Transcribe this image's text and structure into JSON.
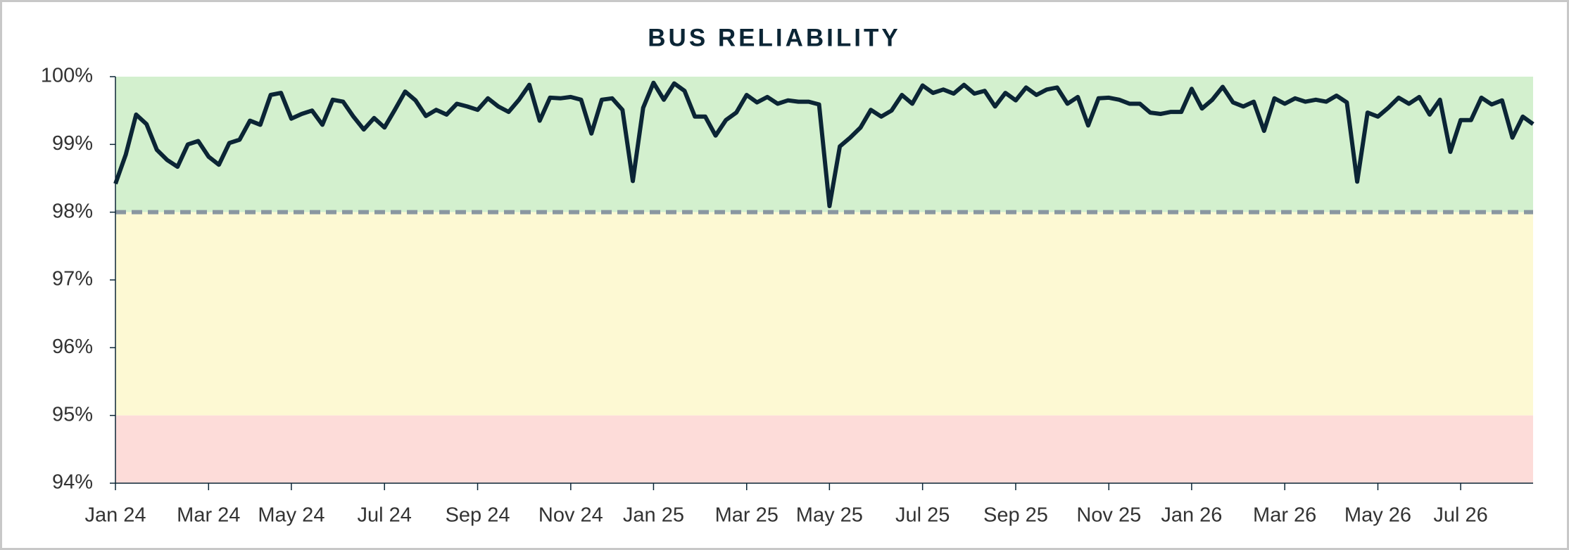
{
  "chart_data": {
    "type": "line",
    "title": "BUS RELIABILITY",
    "categories": [
      "Jan 24",
      null,
      null,
      null,
      null,
      null,
      null,
      null,
      null,
      "Mar 24",
      null,
      null,
      null,
      null,
      null,
      null,
      null,
      "May 24",
      null,
      null,
      null,
      null,
      null,
      null,
      null,
      null,
      "Jul 24",
      null,
      null,
      null,
      null,
      null,
      null,
      null,
      null,
      "Sep 24",
      null,
      null,
      null,
      null,
      null,
      null,
      null,
      null,
      "Nov 24",
      null,
      null,
      null,
      null,
      null,
      null,
      null,
      "Jan 25",
      null,
      null,
      null,
      null,
      null,
      null,
      null,
      null,
      "Mar 25",
      null,
      null,
      null,
      null,
      null,
      null,
      null,
      "May 25",
      null,
      null,
      null,
      null,
      null,
      null,
      null,
      null,
      "Jul 25",
      null,
      null,
      null,
      null,
      null,
      null,
      null,
      null,
      "Sep 25",
      null,
      null,
      null,
      null,
      null,
      null,
      null,
      null,
      "Nov 25",
      null,
      null,
      null,
      null,
      null,
      null,
      null,
      "Jan 26",
      null,
      null,
      null,
      null,
      null,
      null,
      null,
      null,
      "Mar 26",
      null,
      null,
      null,
      null,
      null,
      null,
      null,
      null,
      "May 26",
      null,
      null,
      null,
      null,
      null,
      null,
      null,
      "Jul 26",
      null,
      null,
      null,
      null,
      null,
      null,
      null
    ],
    "values": [
      98.42,
      98.85,
      99.44,
      99.3,
      98.92,
      98.77,
      98.67,
      99.0,
      99.05,
      98.82,
      98.7,
      99.02,
      99.07,
      99.35,
      99.29,
      99.73,
      99.76,
      99.38,
      99.45,
      99.5,
      99.29,
      99.66,
      99.63,
      99.41,
      99.22,
      99.39,
      99.25,
      99.51,
      99.78,
      99.65,
      99.42,
      99.51,
      99.44,
      99.6,
      99.56,
      99.51,
      99.68,
      99.56,
      99.48,
      99.66,
      99.88,
      99.35,
      99.69,
      99.68,
      99.7,
      99.66,
      99.16,
      99.66,
      99.68,
      99.51,
      98.46,
      99.54,
      99.91,
      99.66,
      99.9,
      99.79,
      99.41,
      99.41,
      99.13,
      99.36,
      99.47,
      99.73,
      99.62,
      99.7,
      99.6,
      99.65,
      99.63,
      99.63,
      99.59,
      98.09,
      98.97,
      99.1,
      99.25,
      99.51,
      99.41,
      99.5,
      99.73,
      99.6,
      99.87,
      99.76,
      99.81,
      99.75,
      99.88,
      99.75,
      99.79,
      99.56,
      99.76,
      99.65,
      99.84,
      99.73,
      99.81,
      99.84,
      99.6,
      99.7,
      99.28,
      99.68,
      99.69,
      99.66,
      99.6,
      99.6,
      99.47,
      99.45,
      99.48,
      99.48,
      99.82,
      99.53,
      99.66,
      99.85,
      99.62,
      99.56,
      99.63,
      99.2,
      99.68,
      99.6,
      99.68,
      99.63,
      99.66,
      99.63,
      99.72,
      99.62,
      98.45,
      99.47,
      99.41,
      99.54,
      99.69,
      99.6,
      99.7,
      99.44,
      99.66,
      98.89,
      99.36,
      99.36,
      99.69,
      99.59,
      99.65,
      99.1,
      99.41,
      99.3
    ],
    "color": "#0b2535",
    "ylim": [
      94,
      100
    ],
    "yticks": [
      {
        "value": 94,
        "label": "94%"
      },
      {
        "value": 95,
        "label": "95%"
      },
      {
        "value": 96,
        "label": "96%"
      },
      {
        "value": 97,
        "label": "97%"
      },
      {
        "value": 98,
        "label": "98%"
      },
      {
        "value": 99,
        "label": "99%"
      },
      {
        "value": 100,
        "label": "100%"
      }
    ],
    "bands": [
      {
        "from": 98,
        "to": 100,
        "color": "#d3f0ce"
      },
      {
        "from": 95,
        "to": 98,
        "color": "#fdf9d3"
      },
      {
        "from": 94,
        "to": 95,
        "color": "#fddcd9"
      }
    ],
    "target": {
      "value": 98,
      "color": "#8a97a1"
    }
  }
}
